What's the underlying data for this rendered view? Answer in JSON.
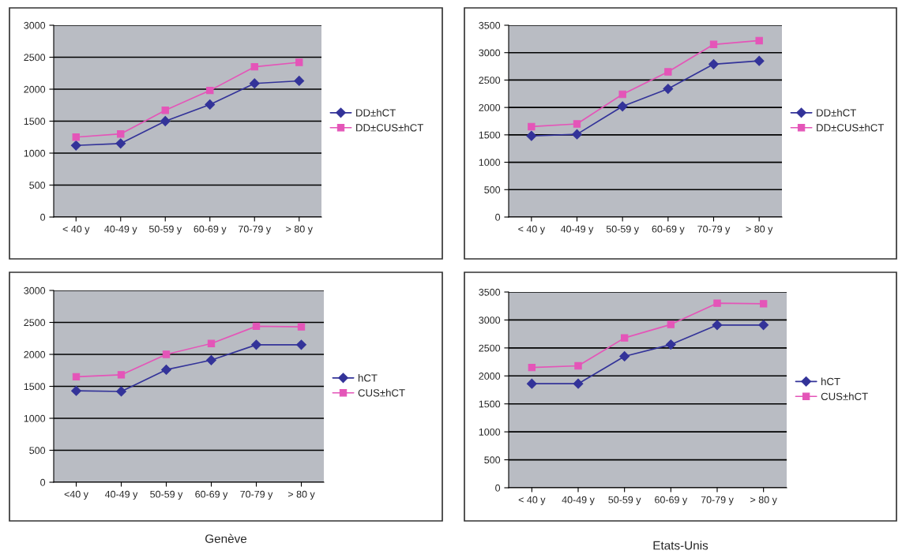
{
  "chart_data": [
    {
      "type": "line",
      "categories": [
        "< 40 y",
        "40-49 y",
        "50-59 y",
        "60-69 y",
        "70-79 y",
        "> 80 y"
      ],
      "ylim": [
        0,
        3000
      ],
      "yticks": [
        0,
        500,
        1000,
        1500,
        2000,
        2500,
        3000
      ],
      "grid": "y",
      "legend": "right",
      "series": [
        {
          "name": "DD±hCT",
          "color": "#333399",
          "marker": "diamond",
          "values": [
            1120,
            1150,
            1500,
            1760,
            2090,
            2130
          ]
        },
        {
          "name": "DD±CUS±hCT",
          "color": "#e455b8",
          "marker": "square",
          "values": [
            1250,
            1300,
            1670,
            1980,
            2350,
            2420
          ]
        }
      ]
    },
    {
      "type": "line",
      "categories": [
        "< 40 y",
        "40-49 y",
        "50-59 y",
        "60-69 y",
        "70-79 y",
        "> 80 y"
      ],
      "ylim": [
        0,
        3500
      ],
      "yticks": [
        0,
        500,
        1000,
        1500,
        2000,
        2500,
        3000,
        3500
      ],
      "grid": "y",
      "legend": "right",
      "series": [
        {
          "name": "DD±hCT",
          "color": "#333399",
          "marker": "diamond",
          "values": [
            1480,
            1510,
            2020,
            2340,
            2790,
            2850
          ]
        },
        {
          "name": "DD±CUS±hCT",
          "color": "#e455b8",
          "marker": "square",
          "values": [
            1650,
            1700,
            2240,
            2650,
            3150,
            3220
          ]
        }
      ]
    },
    {
      "type": "line",
      "categories": [
        "<40 y",
        "40-49 y",
        "50-59 y",
        "60-69 y",
        "70-79 y",
        "> 80 y"
      ],
      "ylim": [
        0,
        3000
      ],
      "yticks": [
        0,
        500,
        1000,
        1500,
        2000,
        2500,
        3000
      ],
      "grid": "y",
      "legend": "right",
      "annotations": [
        "Genève"
      ],
      "series": [
        {
          "name": "hCT",
          "color": "#333399",
          "marker": "diamond",
          "values": [
            1430,
            1420,
            1760,
            1910,
            2150,
            2150
          ]
        },
        {
          "name": "CUS±hCT",
          "color": "#e455b8",
          "marker": "square",
          "values": [
            1650,
            1680,
            2000,
            2170,
            2440,
            2430
          ]
        }
      ]
    },
    {
      "type": "line",
      "categories": [
        "< 40 y",
        "40-49 y",
        "50-59 y",
        "60-69 y",
        "70-79 y",
        "> 80 y"
      ],
      "ylim": [
        0,
        3500
      ],
      "yticks": [
        0,
        500,
        1000,
        1500,
        2000,
        2500,
        3000,
        3500
      ],
      "grid": "y",
      "legend": "right",
      "annotations": [
        "Etats-Unis"
      ],
      "series": [
        {
          "name": "hCT",
          "color": "#333399",
          "marker": "diamond",
          "values": [
            1860,
            1860,
            2350,
            2560,
            2910,
            2910
          ]
        },
        {
          "name": "CUS±hCT",
          "color": "#e455b8",
          "marker": "square",
          "values": [
            2150,
            2180,
            2680,
            2920,
            3300,
            3290
          ]
        }
      ]
    }
  ]
}
